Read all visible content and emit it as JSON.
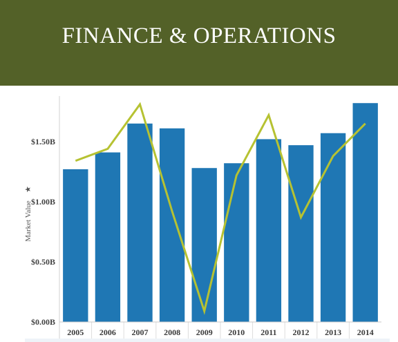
{
  "header": {
    "title": "FINANCE & OPERATIONS",
    "background_color": "#536128"
  },
  "chart_data": {
    "type": "bar",
    "categories": [
      "2005",
      "2006",
      "2007",
      "2008",
      "2009",
      "2010",
      "2011",
      "2012",
      "2013",
      "2014"
    ],
    "series": [
      {
        "type": "bar",
        "values": [
          1.27,
          1.41,
          1.65,
          1.61,
          1.28,
          1.32,
          1.52,
          1.47,
          1.57,
          1.82
        ],
        "color": "#1f77b4"
      },
      {
        "type": "line",
        "values": [
          1.34,
          1.44,
          1.81,
          0.92,
          0.09,
          1.22,
          1.72,
          0.87,
          1.38,
          1.65
        ],
        "color": "#b6c232"
      }
    ],
    "ylabel": "Market Value",
    "yticks": [
      {
        "value": 0.0,
        "label": "$0.00B"
      },
      {
        "value": 0.5,
        "label": "$0.50B"
      },
      {
        "value": 1.0,
        "label": "$1.00B"
      },
      {
        "value": 1.5,
        "label": "$1.50B"
      }
    ],
    "ylim": [
      0,
      1.85
    ],
    "grid": false,
    "legend": "none"
  }
}
